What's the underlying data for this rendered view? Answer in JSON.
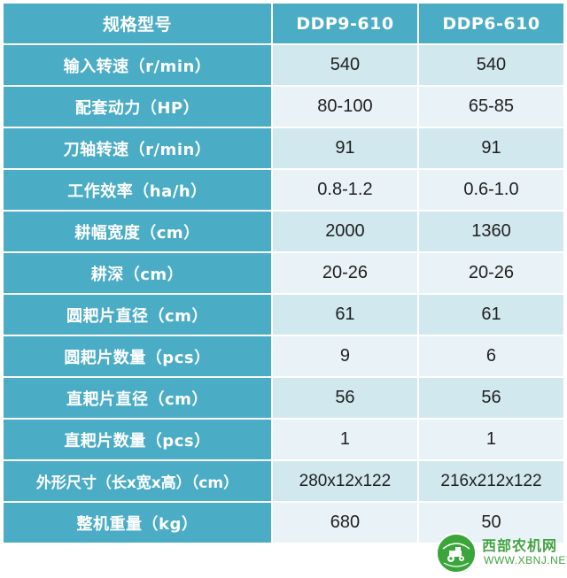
{
  "table": {
    "header": {
      "label": "规格型号",
      "model_a": "DDP9-610",
      "model_b": "DDP6-610"
    },
    "rows": [
      {
        "label": "输入转速（r/min）",
        "a": "540",
        "b": "540"
      },
      {
        "label": "配套动力（HP）",
        "a": "80-100",
        "b": "65-85"
      },
      {
        "label": "刀轴转速（r/min）",
        "a": "91",
        "b": "91"
      },
      {
        "label": "工作效率（ha/h）",
        "a": "0.8-1.2",
        "b": "0.6-1.0"
      },
      {
        "label": "耕幅宽度（cm）",
        "a": "2000",
        "b": "1360"
      },
      {
        "label": "耕深（cm）",
        "a": "20-26",
        "b": "20-26"
      },
      {
        "label": "圆耙片直径（cm）",
        "a": "61",
        "b": "61"
      },
      {
        "label": "圆耙片数量（pcs）",
        "a": "9",
        "b": "6"
      },
      {
        "label": "直耙片直径（cm）",
        "a": "56",
        "b": "56"
      },
      {
        "label": "直耙片数量（pcs）",
        "a": "1",
        "b": "1"
      },
      {
        "label": "外形尺寸（长x宽x高）（cm）",
        "a": "280x12x122",
        "b": "216x212x122"
      },
      {
        "label": "整机重量（kg）",
        "a": "680",
        "b": "50"
      }
    ]
  },
  "watermark": {
    "logo_text": "西部农机网",
    "logo_sub": "xbnj.net",
    "name": "西部农机网",
    "url": "WWW.XBNJ.NET"
  },
  "colors": {
    "header_bg": "#4bacc6",
    "row_odd_bg": "#d2e8ef",
    "row_even_bg": "#e9f3f7",
    "watermark_green": "#3aa63a"
  }
}
